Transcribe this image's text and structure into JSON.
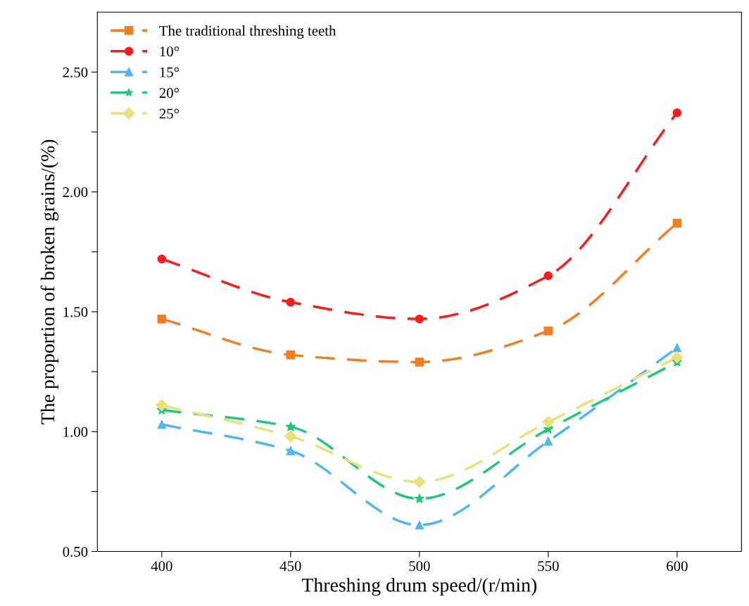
{
  "chart_data": {
    "type": "line",
    "xlabel": "Threshing drum speed/(r/min)",
    "ylabel": "The proportion of broken grains/(%)",
    "x": [
      400,
      450,
      500,
      550,
      600
    ],
    "series": [
      {
        "name": "The traditional threshing teeth",
        "color": "#f57c1f",
        "marker": "square",
        "values": [
          1.47,
          1.32,
          1.29,
          1.42,
          1.87
        ]
      },
      {
        "name": "10°",
        "color": "#ff1a1a",
        "marker": "circle",
        "values": [
          1.72,
          1.54,
          1.47,
          1.65,
          2.33
        ]
      },
      {
        "name": "15°",
        "color": "#4db8f0",
        "marker": "triangle",
        "values": [
          1.03,
          0.92,
          0.61,
          0.96,
          1.35
        ]
      },
      {
        "name": "20°",
        "color": "#1dc97a",
        "marker": "star",
        "values": [
          1.09,
          1.02,
          0.72,
          1.01,
          1.29
        ]
      },
      {
        "name": "25°",
        "color": "#ece07a",
        "marker": "diamond",
        "values": [
          1.11,
          0.98,
          0.79,
          1.04,
          1.31
        ]
      }
    ],
    "xlim": [
      375,
      625
    ],
    "ylim": [
      0.5,
      2.75
    ],
    "xticks": [
      400,
      450,
      500,
      550,
      600
    ],
    "yticks": [
      {
        "value": 0.5,
        "label": "0.50"
      },
      {
        "value": 0.75,
        "label": null
      },
      {
        "value": 1.0,
        "label": "1.00"
      },
      {
        "value": 1.25,
        "label": null
      },
      {
        "value": 1.5,
        "label": "1.50"
      },
      {
        "value": 1.75,
        "label": null
      },
      {
        "value": 2.0,
        "label": "2.00"
      },
      {
        "value": 2.25,
        "label": null
      },
      {
        "value": 2.5,
        "label": "2.50"
      }
    ],
    "line_style": "dashed",
    "legend": "top left",
    "grid": false
  }
}
